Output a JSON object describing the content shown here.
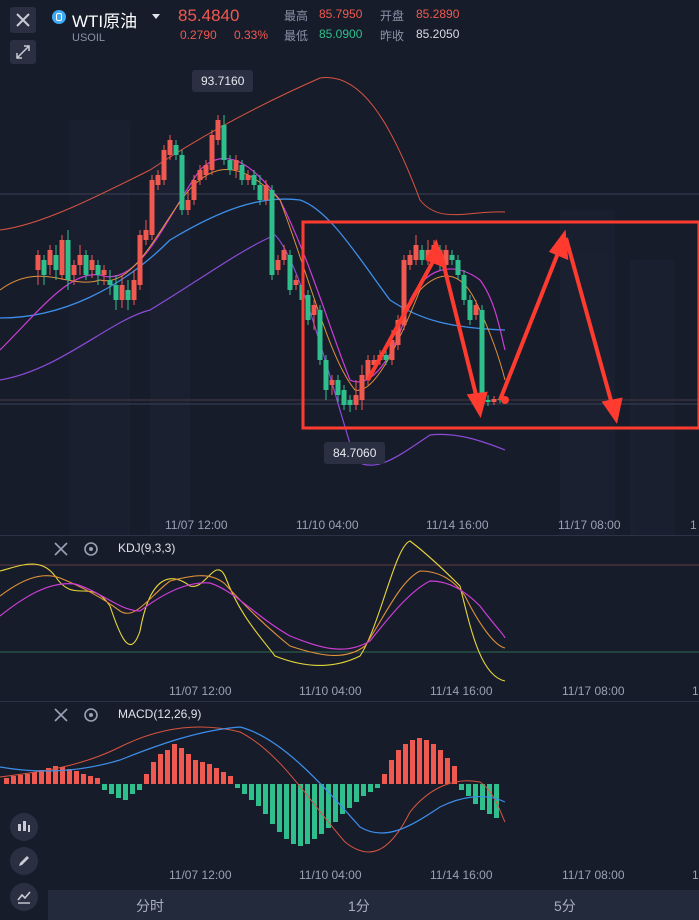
{
  "header": {
    "symbol_name": "WTI原油",
    "symbol_code": "USOIL",
    "last_price": "85.4840",
    "change": "0.2790",
    "change_pct": "0.33%",
    "high_label": "最高",
    "high_value": "85.7950",
    "open_label": "开盘",
    "open_value": "85.2890",
    "low_label": "最低",
    "low_value": "85.0900",
    "prev_close_label": "昨收",
    "prev_close_value": "85.2050"
  },
  "main_chart": {
    "max_tag": "93.7160",
    "min_tag": "84.7060",
    "time_labels": [
      "11/07 12:00",
      "11/10 04:00",
      "11/14 16:00",
      "11/17 08:00",
      "1"
    ]
  },
  "kdj": {
    "title": "KDJ(9,3,3)",
    "time_labels": [
      "11/07 12:00",
      "11/10 04:00",
      "11/14 16:00",
      "11/17 08:00",
      "1"
    ]
  },
  "macd": {
    "title": "MACD(12,26,9)",
    "time_labels": [
      "11/07 12:00",
      "11/10 04:00",
      "11/14 16:00",
      "11/17 08:00",
      "1"
    ]
  },
  "tabs": [
    "分时",
    "1分",
    "5分"
  ],
  "colors": {
    "up": "#f0594f",
    "down": "#2fbf8c",
    "background": "#171c2b",
    "annotation": "#ff3b30"
  },
  "icons": [
    "close-icon",
    "collapse-icon",
    "chevron-down-icon",
    "settings-icon",
    "candlestick-icon",
    "pencil-icon",
    "indicator-icon"
  ]
}
